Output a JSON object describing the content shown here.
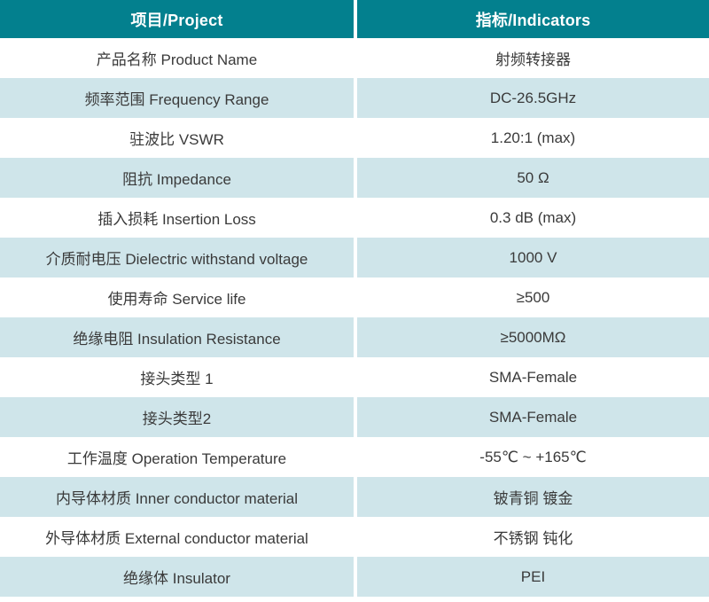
{
  "chart_data": {
    "type": "table",
    "columns": [
      "项目/Project",
      "指标/Indicators"
    ],
    "rows": [
      [
        "产品名称 Product Name",
        "射频转接器"
      ],
      [
        "频率范围 Frequency Range",
        "DC-26.5GHz"
      ],
      [
        "驻波比 VSWR",
        "1.20:1 (max)"
      ],
      [
        "阻抗 Impedance",
        "50 Ω"
      ],
      [
        "插入损耗 Insertion Loss",
        "0.3 dB (max)"
      ],
      [
        "介质耐电压 Dielectric withstand voltage",
        "1000 V"
      ],
      [
        "使用寿命 Service life",
        "≥500"
      ],
      [
        "绝缘电阻 Insulation Resistance",
        "≥5000MΩ"
      ],
      [
        "接头类型 1",
        "SMA-Female"
      ],
      [
        "接头类型2",
        "SMA-Female"
      ],
      [
        "工作温度 Operation Temperature",
        "-55℃ ~ +165℃"
      ],
      [
        "内导体材质 Inner conductor material",
        "铍青铜 镀金"
      ],
      [
        "外导体材质 External conductor material",
        "不锈钢 钝化"
      ],
      [
        "绝缘体 Insulator",
        "PEI"
      ]
    ],
    "layout": {
      "zebra_striping": true,
      "first_data_row_bg": "white",
      "column_alignment": "center"
    }
  },
  "colors": {
    "header_bg": "#03808E",
    "header_text": "#FFFFFF",
    "row_bg": "#FFFFFF",
    "row_alt_bg": "#CFE5EA",
    "body_text": "#3A3A3A",
    "divider": "#FFFFFF"
  }
}
